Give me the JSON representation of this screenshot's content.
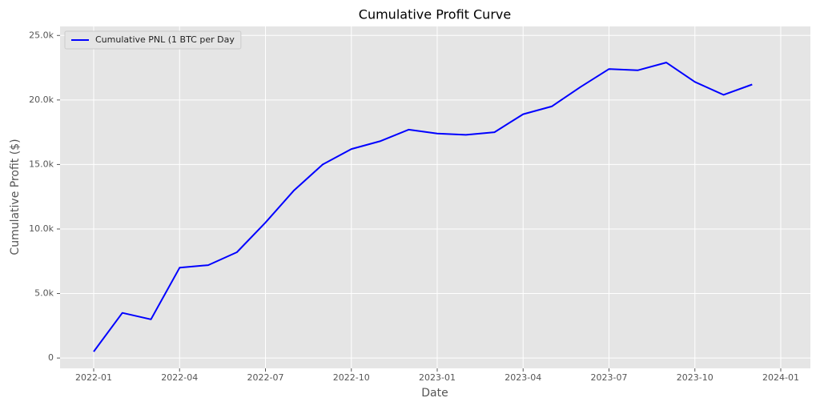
{
  "chart_data": {
    "type": "line",
    "title": "Cumulative Profit Curve",
    "x_label": "Date",
    "y_label": "Cumulative Profit ($)",
    "x": [
      "2022-01",
      "2022-02",
      "2022-03",
      "2022-04",
      "2022-05",
      "2022-06",
      "2022-07",
      "2022-08",
      "2022-09",
      "2022-10",
      "2022-11",
      "2022-12",
      "2023-01",
      "2023-02",
      "2023-03",
      "2023-04",
      "2023-05",
      "2023-06",
      "2023-07",
      "2023-08",
      "2023-09",
      "2023-10",
      "2023-11",
      "2023-12"
    ],
    "series": [
      {
        "name": "Cumulative PNL (1 BTC per Day",
        "color": "#0000ff",
        "values": [
          500,
          3500,
          3000,
          7000,
          7200,
          8200,
          10500,
          13000,
          15000,
          16200,
          16800,
          17700,
          17400,
          17300,
          17500,
          18900,
          19500,
          21000,
          22400,
          22300,
          22900,
          21400,
          20400,
          21200
        ]
      }
    ],
    "xticks": [
      "2022-01",
      "2022-04",
      "2022-07",
      "2022-10",
      "2023-01",
      "2023-04",
      "2023-07",
      "2023-10",
      "2024-01"
    ],
    "ylim": [
      -800,
      25700
    ],
    "yticks": [
      0,
      {
        "value": 5000,
        "label": "5.0k"
      },
      {
        "value": 10000,
        "label": "10.0k"
      },
      {
        "value": 15000,
        "label": "15.0k"
      },
      {
        "value": 20000,
        "label": "20.0k"
      },
      {
        "value": 25000,
        "label": "25.0k"
      }
    ],
    "grid": true,
    "legend": "upper left"
  }
}
